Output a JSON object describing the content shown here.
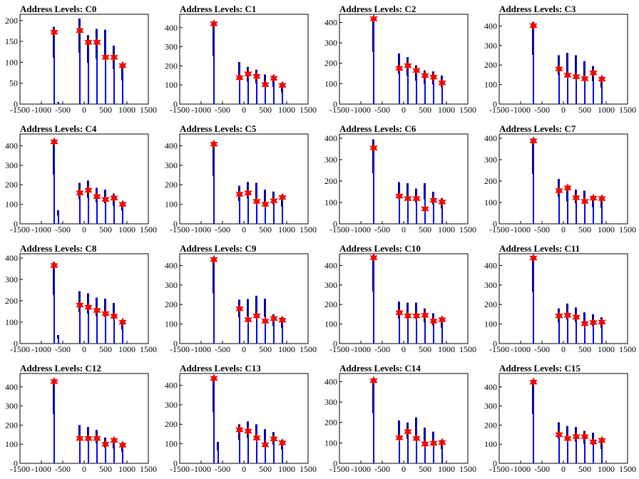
{
  "colors": {
    "histogram": "#0000ff",
    "histogram_edge": "#000000",
    "peak_marker": "#ff0000",
    "axis": "#000000",
    "background": "#ffffff"
  },
  "xaxis": {
    "range": [
      -1500,
      1500
    ],
    "ticks": [
      "-1500",
      "-1000",
      "-500",
      "0",
      "500",
      "1000",
      "1500"
    ]
  },
  "chart_data": [
    {
      "type": "bar",
      "title": "Address Levels: C0",
      "xlim": [
        -1500,
        1500
      ],
      "ylim": [
        0,
        215
      ],
      "yticks": [
        0,
        50,
        100,
        150,
        200
      ],
      "bins": [
        {
          "x": -700,
          "y": 185
        },
        {
          "x": -600,
          "y": 5
        },
        {
          "x": -100,
          "y": 205
        },
        {
          "x": 100,
          "y": 165
        },
        {
          "x": 300,
          "y": 180
        },
        {
          "x": 500,
          "y": 178
        },
        {
          "x": 700,
          "y": 140
        },
        {
          "x": 900,
          "y": 95
        }
      ],
      "peaks": [
        {
          "x": -700,
          "y": 172
        },
        {
          "x": -100,
          "y": 176
        },
        {
          "x": 100,
          "y": 148
        },
        {
          "x": 300,
          "y": 148
        },
        {
          "x": 500,
          "y": 112
        },
        {
          "x": 700,
          "y": 112
        },
        {
          "x": 900,
          "y": 92
        }
      ]
    },
    {
      "type": "bar",
      "title": "Address Levels: C1",
      "xlim": [
        -1500,
        1500
      ],
      "ylim": [
        0,
        470
      ],
      "yticks": [
        0,
        100,
        200,
        300,
        400
      ],
      "bins": [
        {
          "x": -700,
          "y": 420
        },
        {
          "x": -100,
          "y": 220
        },
        {
          "x": 100,
          "y": 195
        },
        {
          "x": 300,
          "y": 180
        },
        {
          "x": 500,
          "y": 155
        },
        {
          "x": 700,
          "y": 150
        },
        {
          "x": 900,
          "y": 100
        }
      ],
      "peaks": [
        {
          "x": -700,
          "y": 420
        },
        {
          "x": -100,
          "y": 138
        },
        {
          "x": 100,
          "y": 158
        },
        {
          "x": 300,
          "y": 145
        },
        {
          "x": 500,
          "y": 102
        },
        {
          "x": 700,
          "y": 135
        },
        {
          "x": 900,
          "y": 98
        }
      ]
    },
    {
      "type": "bar",
      "title": "Address Levels: C2",
      "xlim": [
        -1500,
        1500
      ],
      "ylim": [
        0,
        440
      ],
      "yticks": [
        0,
        100,
        200,
        300,
        400
      ],
      "bins": [
        {
          "x": -700,
          "y": 425
        },
        {
          "x": -100,
          "y": 248
        },
        {
          "x": 100,
          "y": 230
        },
        {
          "x": 300,
          "y": 190
        },
        {
          "x": 500,
          "y": 165
        },
        {
          "x": 700,
          "y": 160
        },
        {
          "x": 900,
          "y": 140
        }
      ],
      "peaks": [
        {
          "x": -700,
          "y": 418
        },
        {
          "x": -100,
          "y": 175
        },
        {
          "x": 100,
          "y": 188
        },
        {
          "x": 300,
          "y": 165
        },
        {
          "x": 500,
          "y": 140
        },
        {
          "x": 700,
          "y": 132
        },
        {
          "x": 900,
          "y": 104
        }
      ]
    },
    {
      "type": "bar",
      "title": "Address Levels: C3",
      "xlim": [
        -1500,
        1500
      ],
      "ylim": [
        0,
        460
      ],
      "yticks": [
        0,
        100,
        200,
        300,
        400
      ],
      "bins": [
        {
          "x": -700,
          "y": 420
        },
        {
          "x": -100,
          "y": 250
        },
        {
          "x": 100,
          "y": 262
        },
        {
          "x": 300,
          "y": 250
        },
        {
          "x": 500,
          "y": 220
        },
        {
          "x": 700,
          "y": 195
        },
        {
          "x": 900,
          "y": 140
        }
      ],
      "peaks": [
        {
          "x": -700,
          "y": 402
        },
        {
          "x": -100,
          "y": 180
        },
        {
          "x": 100,
          "y": 148
        },
        {
          "x": 300,
          "y": 140
        },
        {
          "x": 500,
          "y": 130
        },
        {
          "x": 700,
          "y": 160
        },
        {
          "x": 900,
          "y": 128
        }
      ]
    },
    {
      "type": "bar",
      "title": "Address Levels: C4",
      "xlim": [
        -1500,
        1500
      ],
      "ylim": [
        0,
        460
      ],
      "yticks": [
        0,
        100,
        200,
        300,
        400
      ],
      "bins": [
        {
          "x": -700,
          "y": 420
        },
        {
          "x": -600,
          "y": 70
        },
        {
          "x": -100,
          "y": 210
        },
        {
          "x": 100,
          "y": 222
        },
        {
          "x": 300,
          "y": 185
        },
        {
          "x": 500,
          "y": 175
        },
        {
          "x": 700,
          "y": 155
        },
        {
          "x": 900,
          "y": 110
        }
      ],
      "peaks": [
        {
          "x": -700,
          "y": 420
        },
        {
          "x": -100,
          "y": 158
        },
        {
          "x": 100,
          "y": 172
        },
        {
          "x": 300,
          "y": 140
        },
        {
          "x": 500,
          "y": 125
        },
        {
          "x": 700,
          "y": 132
        },
        {
          "x": 900,
          "y": 100
        }
      ]
    },
    {
      "type": "bar",
      "title": "Address Levels: C5",
      "xlim": [
        -1500,
        1500
      ],
      "ylim": [
        0,
        460
      ],
      "yticks": [
        0,
        100,
        200,
        300,
        400
      ],
      "bins": [
        {
          "x": -700,
          "y": 410
        },
        {
          "x": -100,
          "y": 195
        },
        {
          "x": 100,
          "y": 215
        },
        {
          "x": 300,
          "y": 210
        },
        {
          "x": 500,
          "y": 175
        },
        {
          "x": 700,
          "y": 165
        },
        {
          "x": 900,
          "y": 145
        }
      ],
      "peaks": [
        {
          "x": -700,
          "y": 408
        },
        {
          "x": -100,
          "y": 152
        },
        {
          "x": 100,
          "y": 158
        },
        {
          "x": 300,
          "y": 115
        },
        {
          "x": 500,
          "y": 100
        },
        {
          "x": 700,
          "y": 118
        },
        {
          "x": 900,
          "y": 135
        }
      ]
    },
    {
      "type": "bar",
      "title": "Address Levels: C6",
      "xlim": [
        -1500,
        1500
      ],
      "ylim": [
        0,
        420
      ],
      "yticks": [
        0,
        100,
        200,
        300,
        400
      ],
      "bins": [
        {
          "x": -700,
          "y": 395
        },
        {
          "x": -100,
          "y": 195
        },
        {
          "x": 100,
          "y": 190
        },
        {
          "x": 300,
          "y": 165
        },
        {
          "x": 500,
          "y": 190
        },
        {
          "x": 700,
          "y": 150
        },
        {
          "x": 900,
          "y": 120
        }
      ],
      "peaks": [
        {
          "x": -700,
          "y": 355
        },
        {
          "x": -100,
          "y": 130
        },
        {
          "x": 100,
          "y": 118
        },
        {
          "x": 300,
          "y": 118
        },
        {
          "x": 500,
          "y": 70
        },
        {
          "x": 700,
          "y": 110
        },
        {
          "x": 900,
          "y": 102
        }
      ]
    },
    {
      "type": "bar",
      "title": "Address Levels: C7",
      "xlim": [
        -1500,
        1500
      ],
      "ylim": [
        0,
        420
      ],
      "yticks": [
        0,
        100,
        200,
        300,
        400
      ],
      "bins": [
        {
          "x": -700,
          "y": 390
        },
        {
          "x": -100,
          "y": 210
        },
        {
          "x": 100,
          "y": 175
        },
        {
          "x": 300,
          "y": 160
        },
        {
          "x": 500,
          "y": 155
        },
        {
          "x": 700,
          "y": 130
        },
        {
          "x": 900,
          "y": 125
        }
      ],
      "peaks": [
        {
          "x": -700,
          "y": 388
        },
        {
          "x": -100,
          "y": 155
        },
        {
          "x": 100,
          "y": 168
        },
        {
          "x": 300,
          "y": 122
        },
        {
          "x": 500,
          "y": 105
        },
        {
          "x": 700,
          "y": 120
        },
        {
          "x": 900,
          "y": 118
        }
      ]
    },
    {
      "type": "bar",
      "title": "Address Levels: C8",
      "xlim": [
        -1500,
        1500
      ],
      "ylim": [
        0,
        420
      ],
      "yticks": [
        0,
        100,
        200,
        300,
        400
      ],
      "bins": [
        {
          "x": -700,
          "y": 380
        },
        {
          "x": -600,
          "y": 40
        },
        {
          "x": -100,
          "y": 245
        },
        {
          "x": 100,
          "y": 235
        },
        {
          "x": 300,
          "y": 215
        },
        {
          "x": 500,
          "y": 210
        },
        {
          "x": 700,
          "y": 190
        },
        {
          "x": 900,
          "y": 110
        }
      ],
      "peaks": [
        {
          "x": -700,
          "y": 365
        },
        {
          "x": -100,
          "y": 180
        },
        {
          "x": 100,
          "y": 170
        },
        {
          "x": 300,
          "y": 155
        },
        {
          "x": 500,
          "y": 140
        },
        {
          "x": 700,
          "y": 128
        },
        {
          "x": 900,
          "y": 100
        }
      ]
    },
    {
      "type": "bar",
      "title": "Address Levels: C9",
      "xlim": [
        -1500,
        1500
      ],
      "ylim": [
        0,
        460
      ],
      "yticks": [
        0,
        100,
        200,
        300,
        400
      ],
      "bins": [
        {
          "x": -700,
          "y": 430
        },
        {
          "x": -100,
          "y": 225
        },
        {
          "x": 100,
          "y": 228
        },
        {
          "x": 300,
          "y": 245
        },
        {
          "x": 500,
          "y": 230
        },
        {
          "x": 700,
          "y": 150
        },
        {
          "x": 900,
          "y": 135
        }
      ],
      "peaks": [
        {
          "x": -700,
          "y": 430
        },
        {
          "x": -100,
          "y": 178
        },
        {
          "x": 100,
          "y": 122
        },
        {
          "x": 300,
          "y": 142
        },
        {
          "x": 500,
          "y": 115
        },
        {
          "x": 700,
          "y": 128
        },
        {
          "x": 900,
          "y": 120
        }
      ]
    },
    {
      "type": "bar",
      "title": "Address Levels: C10",
      "xlim": [
        -1500,
        1500
      ],
      "ylim": [
        0,
        460
      ],
      "yticks": [
        0,
        100,
        200,
        300,
        400
      ],
      "bins": [
        {
          "x": -700,
          "y": 445
        },
        {
          "x": -100,
          "y": 215
        },
        {
          "x": 100,
          "y": 210
        },
        {
          "x": 300,
          "y": 210
        },
        {
          "x": 500,
          "y": 180
        },
        {
          "x": 700,
          "y": 155
        },
        {
          "x": 900,
          "y": 135
        }
      ],
      "peaks": [
        {
          "x": -700,
          "y": 440
        },
        {
          "x": -100,
          "y": 158
        },
        {
          "x": 100,
          "y": 142
        },
        {
          "x": 300,
          "y": 142
        },
        {
          "x": 500,
          "y": 145
        },
        {
          "x": 700,
          "y": 115
        },
        {
          "x": 900,
          "y": 122
        }
      ]
    },
    {
      "type": "bar",
      "title": "Address Levels: C11",
      "xlim": [
        -1500,
        1500
      ],
      "ylim": [
        0,
        460
      ],
      "yticks": [
        0,
        100,
        200,
        300,
        400
      ],
      "bins": [
        {
          "x": -700,
          "y": 440
        },
        {
          "x": -100,
          "y": 180
        },
        {
          "x": 100,
          "y": 205
        },
        {
          "x": 300,
          "y": 185
        },
        {
          "x": 500,
          "y": 160
        },
        {
          "x": 700,
          "y": 150
        },
        {
          "x": 900,
          "y": 135
        }
      ],
      "peaks": [
        {
          "x": -700,
          "y": 438
        },
        {
          "x": -100,
          "y": 142
        },
        {
          "x": 100,
          "y": 145
        },
        {
          "x": 300,
          "y": 135
        },
        {
          "x": 500,
          "y": 102
        },
        {
          "x": 700,
          "y": 108
        },
        {
          "x": 900,
          "y": 110
        }
      ]
    },
    {
      "type": "bar",
      "title": "Address Levels: C12",
      "xlim": [
        -1500,
        1500
      ],
      "ylim": [
        0,
        470
      ],
      "yticks": [
        0,
        100,
        200,
        300,
        400
      ],
      "bins": [
        {
          "x": -700,
          "y": 430
        },
        {
          "x": -100,
          "y": 200
        },
        {
          "x": 100,
          "y": 190
        },
        {
          "x": 300,
          "y": 175
        },
        {
          "x": 500,
          "y": 135
        },
        {
          "x": 700,
          "y": 130
        },
        {
          "x": 900,
          "y": 100
        }
      ],
      "peaks": [
        {
          "x": -700,
          "y": 428
        },
        {
          "x": -100,
          "y": 130
        },
        {
          "x": 100,
          "y": 130
        },
        {
          "x": 300,
          "y": 130
        },
        {
          "x": 500,
          "y": 100
        },
        {
          "x": 700,
          "y": 120
        },
        {
          "x": 900,
          "y": 95
        }
      ]
    },
    {
      "type": "bar",
      "title": "Address Levels: C13",
      "xlim": [
        -1500,
        1500
      ],
      "ylim": [
        0,
        460
      ],
      "yticks": [
        0,
        100,
        200,
        300,
        400
      ],
      "bins": [
        {
          "x": -700,
          "y": 435
        },
        {
          "x": -600,
          "y": 110
        },
        {
          "x": -100,
          "y": 200
        },
        {
          "x": 100,
          "y": 215
        },
        {
          "x": 300,
          "y": 200
        },
        {
          "x": 500,
          "y": 175
        },
        {
          "x": 700,
          "y": 160
        },
        {
          "x": 900,
          "y": 120
        }
      ],
      "peaks": [
        {
          "x": -700,
          "y": 435
        },
        {
          "x": -100,
          "y": 172
        },
        {
          "x": 100,
          "y": 165
        },
        {
          "x": 300,
          "y": 130
        },
        {
          "x": 500,
          "y": 95
        },
        {
          "x": 700,
          "y": 125
        },
        {
          "x": 900,
          "y": 105
        }
      ]
    },
    {
      "type": "bar",
      "title": "Address Levels: C14",
      "xlim": [
        -1500,
        1500
      ],
      "ylim": [
        0,
        440
      ],
      "yticks": [
        0,
        100,
        200,
        300,
        400
      ],
      "bins": [
        {
          "x": -700,
          "y": 410
        },
        {
          "x": -100,
          "y": 210
        },
        {
          "x": 100,
          "y": 200
        },
        {
          "x": 300,
          "y": 225
        },
        {
          "x": 500,
          "y": 175
        },
        {
          "x": 700,
          "y": 155
        },
        {
          "x": 900,
          "y": 115
        }
      ],
      "peaks": [
        {
          "x": -700,
          "y": 405
        },
        {
          "x": -100,
          "y": 125
        },
        {
          "x": 100,
          "y": 155
        },
        {
          "x": 300,
          "y": 122
        },
        {
          "x": 500,
          "y": 95
        },
        {
          "x": 700,
          "y": 98
        },
        {
          "x": 900,
          "y": 102
        }
      ]
    },
    {
      "type": "bar",
      "title": "Address Levels: C15",
      "xlim": [
        -1500,
        1500
      ],
      "ylim": [
        0,
        470
      ],
      "yticks": [
        0,
        100,
        200,
        300,
        400
      ],
      "bins": [
        {
          "x": -700,
          "y": 430
        },
        {
          "x": -100,
          "y": 215
        },
        {
          "x": 100,
          "y": 195
        },
        {
          "x": 300,
          "y": 190
        },
        {
          "x": 500,
          "y": 170
        },
        {
          "x": 700,
          "y": 160
        },
        {
          "x": 900,
          "y": 125
        }
      ],
      "peaks": [
        {
          "x": -700,
          "y": 425
        },
        {
          "x": -100,
          "y": 150
        },
        {
          "x": 100,
          "y": 130
        },
        {
          "x": 300,
          "y": 140
        },
        {
          "x": 500,
          "y": 140
        },
        {
          "x": 700,
          "y": 112
        },
        {
          "x": 900,
          "y": 120
        }
      ]
    }
  ]
}
